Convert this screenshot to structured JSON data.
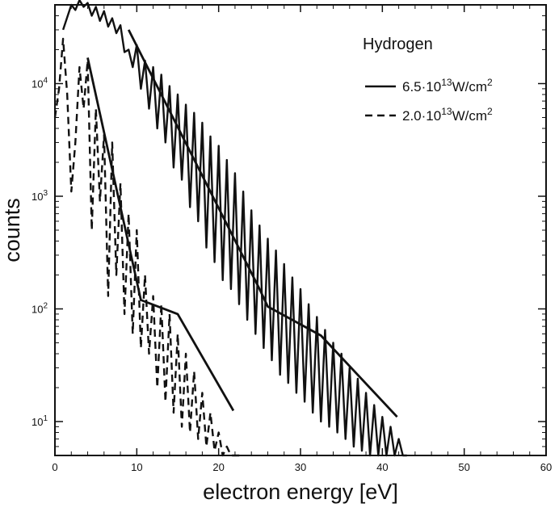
{
  "chart_data": {
    "type": "line",
    "title": "Hydrogen",
    "xlabel": "electron energy [eV]",
    "ylabel": "counts",
    "xscale": "linear",
    "yscale": "log",
    "xlim": [
      0,
      60
    ],
    "ylim": [
      5,
      50000
    ],
    "x_ticks": [
      0,
      10,
      20,
      30,
      40,
      50,
      60
    ],
    "y_ticks": [
      {
        "value": 10,
        "base": "10",
        "exp": "1"
      },
      {
        "value": 100,
        "base": "10",
        "exp": "2"
      },
      {
        "value": 1000,
        "base": "10",
        "exp": "3"
      },
      {
        "value": 10000,
        "base": "10",
        "exp": "4"
      }
    ],
    "legend_position": "top-right",
    "series": [
      {
        "name": "6.5·10^13 W/cm^2",
        "legend_label": {
          "base": "6.5·10",
          "exp1": "13",
          "mid": "W/cm",
          "exp2": "2"
        },
        "style": "solid",
        "x": [
          1,
          2,
          2.5,
          3,
          3.5,
          4,
          4.5,
          5,
          5.5,
          6,
          6.5,
          7,
          7.5,
          8,
          8.5,
          9,
          9.5,
          10,
          10.5,
          11,
          11.5,
          12,
          12.5,
          13,
          13.5,
          14,
          14.5,
          15,
          15.5,
          16,
          16.5,
          17,
          17.5,
          18,
          18.5,
          19,
          19.5,
          20,
          20.5,
          21,
          21.5,
          22,
          22.5,
          23,
          23.5,
          24,
          24.5,
          25,
          25.5,
          26,
          26.5,
          27,
          27.5,
          28,
          28.5,
          29,
          29.5,
          30,
          30.5,
          31,
          31.5,
          32,
          32.5,
          33,
          33.5,
          34,
          34.5,
          35,
          35.5,
          36,
          36.5,
          37,
          37.5,
          38,
          38.5,
          39,
          39.5,
          40,
          40.5,
          41,
          41.5,
          42,
          42.5,
          43
        ],
        "y": [
          30000,
          50000,
          45000,
          55000,
          48000,
          52000,
          40000,
          48000,
          36000,
          44000,
          32000,
          38000,
          28000,
          33000,
          19000,
          20000,
          14000,
          22000,
          9000,
          16000,
          6000,
          14000,
          4000,
          12000,
          3000,
          9500,
          1800,
          8000,
          1400,
          6500,
          800,
          5500,
          600,
          4500,
          350,
          3400,
          260,
          2800,
          180,
          2100,
          150,
          1600,
          110,
          1100,
          80,
          750,
          60,
          550,
          45,
          420,
          35,
          330,
          26,
          250,
          22,
          190,
          18,
          150,
          15,
          110,
          12,
          85,
          10,
          65,
          9,
          50,
          8,
          40,
          7,
          30,
          6,
          24,
          5.5,
          18,
          5,
          14,
          5,
          11,
          5,
          9,
          5,
          7,
          5,
          5
        ]
      },
      {
        "name": "2.0·10^13 W/cm^2",
        "legend_label": {
          "base": "2.0·10",
          "exp1": "13",
          "mid": "W/cm",
          "exp2": "2"
        },
        "style": "dashed",
        "x": [
          0,
          0.5,
          1,
          1.5,
          2,
          2.5,
          3,
          3.5,
          4,
          4.5,
          5,
          5.5,
          6,
          6.5,
          7,
          7.5,
          8,
          8.5,
          9,
          9.5,
          10,
          10.5,
          11,
          11.5,
          12,
          12.5,
          13,
          13.5,
          14,
          14.5,
          15,
          15.5,
          16,
          16.5,
          17,
          17.5,
          18,
          18.5,
          19,
          19.5,
          20,
          20.5,
          21,
          21.5,
          22,
          22.5,
          23
        ],
        "y": [
          5000,
          9000,
          25000,
          8000,
          1100,
          3000,
          14000,
          6000,
          16000,
          500,
          6000,
          900,
          3500,
          130,
          3000,
          200,
          1300,
          90,
          700,
          60,
          500,
          45,
          200,
          40,
          130,
          20,
          110,
          15,
          90,
          12,
          60,
          9,
          40,
          8,
          28,
          7,
          18,
          6,
          12,
          5.5,
          8,
          5,
          6,
          5,
          5,
          5,
          5
        ]
      }
    ],
    "guide_lines": [
      {
        "series": "6.5·10^13 W/cm^2",
        "points": [
          [
            9,
            30000
          ],
          [
            25,
            150
          ],
          [
            26,
            105
          ],
          [
            32.5,
            58
          ],
          [
            41.8,
            11
          ]
        ]
      },
      {
        "series": "2.0·10^13 W/cm^2",
        "points": [
          [
            4,
            17000
          ],
          [
            10.5,
            120
          ],
          [
            15,
            90
          ],
          [
            21.8,
            12.5
          ]
        ]
      }
    ]
  }
}
